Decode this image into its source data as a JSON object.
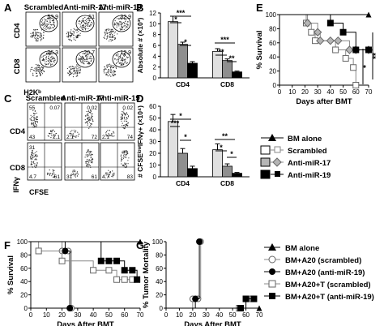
{
  "figure": {
    "panel_letters": [
      "A",
      "B",
      "C",
      "D",
      "E",
      "F",
      "G"
    ],
    "colors": {
      "scrambled": "#ffffff",
      "anti_miR_17": "#b5b5b5",
      "anti_miR_19": "#000000"
    }
  },
  "panel_a": {
    "headers": [
      "Scrambled",
      "Anti-miR-17",
      "Anti-miR-19"
    ],
    "row_labels": [
      "CD4",
      "CD8"
    ],
    "xlabel": "H2Kᵇ",
    "values": [
      [
        "53.9",
        "51",
        "32.9"
      ],
      [
        "26.3",
        "20.7",
        "12.9"
      ]
    ]
  },
  "panel_c": {
    "headers": [
      "Scrambled",
      "Anti-miR-17",
      "Anti-miR-19"
    ],
    "row_labels": [
      "CD4",
      "CD8"
    ],
    "ylabel": "IFNγ",
    "xlabel": "CFSE",
    "cd4": [
      {
        "ul": "55",
        "ur": "0.07",
        "ll": "43",
        "lr": "2.1"
      },
      {
        "ul": "",
        "ur": "0.02",
        "ll": "2.1",
        "lr": "72"
      },
      {
        "ul": "",
        "ur": "0.02",
        "ll": "2.1",
        "lr": "74"
      }
    ],
    "cd8": [
      {
        "ul": "31",
        "ur": "",
        "ll": "4.7",
        "lr": "61"
      },
      {
        "ul": "",
        "ur": "",
        "ll": "31",
        "lr": "61"
      },
      {
        "ul": "",
        "ur": "",
        "ll": "4.7",
        "lr": "83"
      }
    ]
  },
  "chart_data": [
    {
      "panel": "B",
      "type": "bar",
      "ylabel": "Absolute # (×10³)",
      "categories": [
        "CD4",
        "CD8"
      ],
      "ylim": [
        0,
        12
      ],
      "yticks": [
        0,
        2,
        4,
        6,
        8,
        10,
        12
      ],
      "series": [
        {
          "name": "Scrambled",
          "values": [
            10.4,
            4.9
          ],
          "errors": [
            1.0,
            0.5
          ]
        },
        {
          "name": "Anti-miR-17",
          "values": [
            6.2,
            3.2
          ],
          "errors": [
            0.4,
            0.3
          ]
        },
        {
          "name": "Anti-miR-19",
          "values": [
            2.7,
            1.1
          ],
          "errors": [
            0.3,
            0.15
          ]
        }
      ],
      "significance": [
        "*",
        "***",
        "*",
        "***",
        "**",
        "**"
      ]
    },
    {
      "panel": "D",
      "type": "bar",
      "ylabel": "# CFSEˡᵒʷIFNγ+ (×10⁴)",
      "categories": [
        "CD4",
        "CD8"
      ],
      "ylim": [
        0,
        60
      ],
      "yticks": [
        0,
        10,
        20,
        30,
        40,
        50,
        60
      ],
      "series": [
        {
          "name": "Scrambled",
          "values": [
            47,
            23
          ],
          "errors": [
            6,
            5
          ]
        },
        {
          "name": "Anti-miR-17",
          "values": [
            20,
            9
          ],
          "errors": [
            4,
            2
          ]
        },
        {
          "name": "Anti-miR-19",
          "values": [
            7,
            3
          ],
          "errors": [
            2,
            0.7
          ]
        }
      ],
      "significance": [
        "***",
        "*",
        "*",
        "**",
        "*",
        "*"
      ]
    },
    {
      "panel": "E",
      "type": "line",
      "ylabel": "% Survival",
      "xlabel": "Days after BMT",
      "xlim": [
        0,
        70
      ],
      "ylim": [
        0,
        100
      ],
      "xticks": [
        0,
        10,
        20,
        30,
        40,
        50,
        60,
        70
      ],
      "yticks": [
        0,
        20,
        40,
        60,
        80,
        100
      ],
      "series": [
        {
          "name": "BM alone",
          "marker": "triangle",
          "fill": "#000000",
          "x": [
            0,
            70
          ],
          "y": [
            100,
            100
          ]
        },
        {
          "name": "Scrambled",
          "marker": "square",
          "fill": "#ffffff",
          "x": [
            0,
            21,
            25,
            28,
            44,
            52,
            58,
            60
          ],
          "y": [
            100,
            88,
            75,
            63,
            50,
            38,
            25,
            0
          ]
        },
        {
          "name": "Anti-miR-17",
          "marker": "diamond",
          "fill": "#b5b5b5",
          "x": [
            0,
            22,
            30,
            32,
            40,
            46,
            55,
            60,
            70
          ],
          "y": [
            100,
            88,
            75,
            63,
            63,
            63,
            50,
            50,
            50
          ]
        },
        {
          "name": "Anti-miR-19",
          "marker": "square",
          "fill": "#000000",
          "x": [
            0,
            40,
            50,
            60,
            70
          ],
          "y": [
            100,
            88,
            75,
            50,
            50
          ]
        }
      ],
      "significance": [
        "**",
        "*"
      ]
    },
    {
      "panel": "F",
      "type": "line",
      "ylabel": "% Survival",
      "xlabel": "Days After BMT",
      "xlim": [
        0,
        70
      ],
      "ylim": [
        0,
        100
      ],
      "xticks": [
        0,
        10,
        20,
        30,
        40,
        50,
        60,
        70
      ],
      "yticks": [
        0,
        20,
        40,
        60,
        80,
        100
      ],
      "series": [
        {
          "name": "BM alone",
          "marker": "triangle",
          "fill": "#000000",
          "x": [
            0,
            70
          ],
          "y": [
            100,
            100
          ]
        },
        {
          "name": "BM+A20 (scrambled)",
          "marker": "circle",
          "fill": "#ffffff",
          "x": [
            0,
            20,
            24,
            26
          ],
          "y": [
            100,
            86,
            86,
            0
          ]
        },
        {
          "name": "BM+A20 (anti-miR-19)",
          "marker": "circle",
          "fill": "#000000",
          "x": [
            0,
            22,
            25
          ],
          "y": [
            100,
            86,
            0
          ]
        },
        {
          "name": "BM+A20+T (scrambled)",
          "marker": "square",
          "fill": "#ffffff",
          "x": [
            0,
            5,
            20,
            40,
            50,
            55,
            60,
            65
          ],
          "y": [
            100,
            86,
            71,
            57,
            57,
            43,
            43,
            43
          ]
        },
        {
          "name": "BM+A20+T (anti-miR-19)",
          "marker": "square",
          "fill": "#000000",
          "x": [
            0,
            45,
            50,
            55,
            60,
            65,
            68
          ],
          "y": [
            100,
            71,
            71,
            71,
            57,
            57,
            43
          ]
        }
      ]
    },
    {
      "panel": "G",
      "type": "line",
      "ylabel": "% Tumor Mortality",
      "xlabel": "Days After BMT",
      "xlim": [
        0,
        70
      ],
      "ylim": [
        0,
        100
      ],
      "xticks": [
        0,
        10,
        20,
        30,
        40,
        50,
        60,
        70
      ],
      "yticks": [
        0,
        20,
        40,
        60,
        80,
        100
      ],
      "series": [
        {
          "name": "BM alone",
          "marker": "triangle",
          "fill": "#000000",
          "x": [
            0,
            70
          ],
          "y": [
            0,
            0
          ]
        },
        {
          "name": "BM+A20 (scrambled)",
          "marker": "circle",
          "fill": "#ffffff",
          "x": [
            0,
            20,
            24,
            26
          ],
          "y": [
            0,
            14,
            14,
            100
          ]
        },
        {
          "name": "BM+A20 (anti-miR-19)",
          "marker": "circle",
          "fill": "#000000",
          "x": [
            0,
            22,
            25
          ],
          "y": [
            0,
            14,
            100
          ]
        },
        {
          "name": "BM+A20+T (scrambled)",
          "marker": "square",
          "fill": "#ffffff",
          "x": [
            0,
            55,
            60,
            65
          ],
          "y": [
            0,
            0,
            14,
            14
          ]
        },
        {
          "name": "BM+A20+T (anti-miR-19)",
          "marker": "square",
          "fill": "#000000",
          "x": [
            0,
            56,
            60,
            66
          ],
          "y": [
            0,
            0,
            14,
            14
          ]
        }
      ]
    }
  ],
  "legend_bd": [
    "BM alone",
    "Scrambled",
    "Anti-miR-17",
    "Anti-miR-19"
  ],
  "legend_fg": [
    "BM alone",
    "BM+A20 (scrambled)",
    "BM+A20 (anti-miR-19)",
    "BM+A20+T (scrambled)",
    "BM+A20+T (anti-miR-19)"
  ]
}
